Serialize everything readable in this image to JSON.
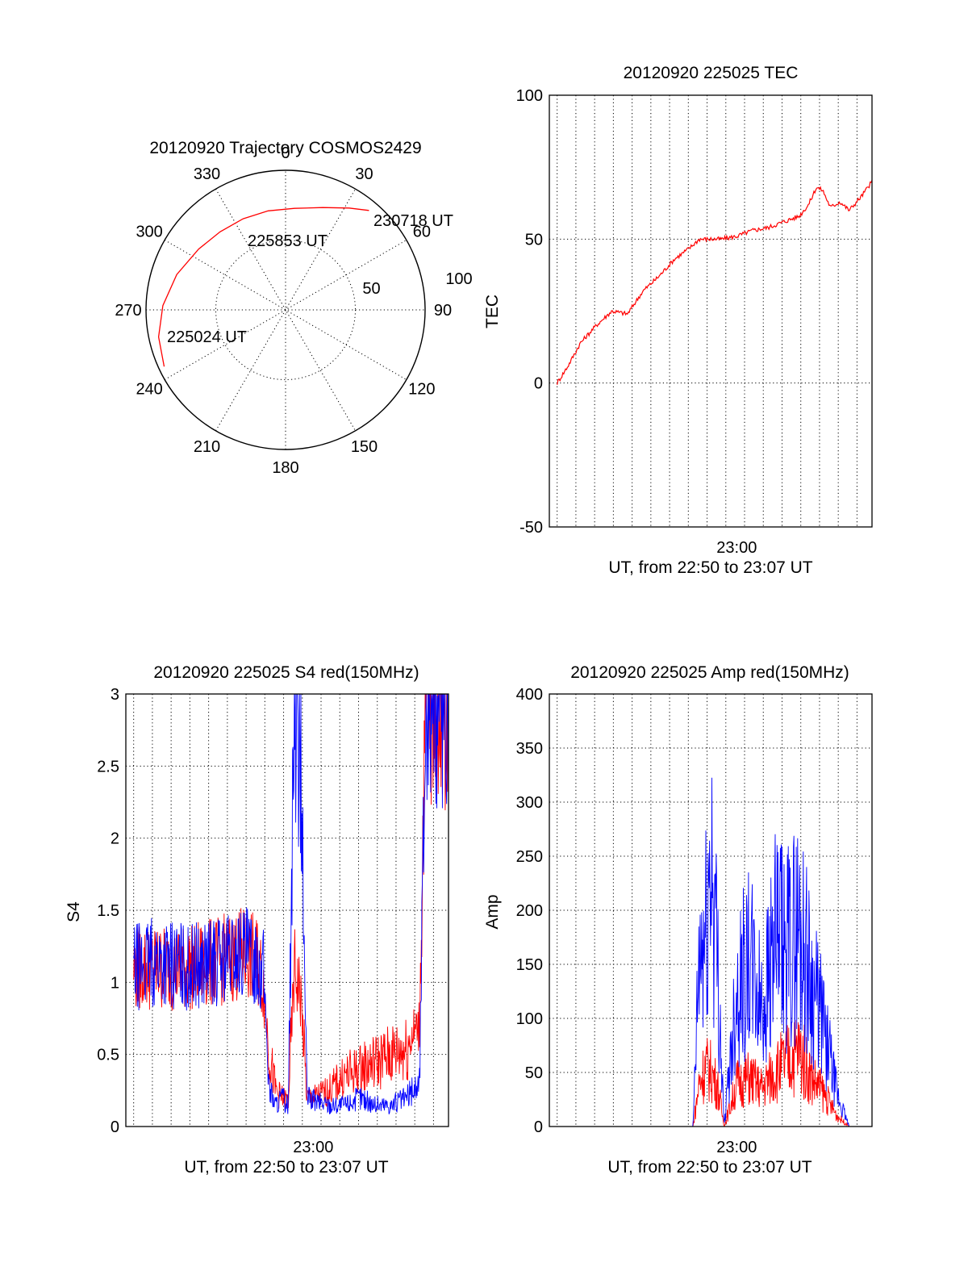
{
  "chart_data": [
    {
      "type": "polar",
      "title": "20120920 Trajectory COSMOS2429",
      "azimuth_labels": [
        "0",
        "30",
        "60",
        "90",
        "120",
        "150",
        "180",
        "210",
        "240",
        "270",
        "300",
        "330"
      ],
      "radial_ticks": [
        "50",
        "100"
      ],
      "radial_max": 100,
      "series": [
        {
          "color": "#ff0000",
          "points": [
            {
              "az": 245,
              "r": 96
            },
            {
              "az": 258,
              "r": 93
            },
            {
              "az": 272,
              "r": 88
            },
            {
              "az": 288,
              "r": 82
            },
            {
              "az": 305,
              "r": 76
            },
            {
              "az": 320,
              "r": 73
            },
            {
              "az": 335,
              "r": 72
            },
            {
              "az": 350,
              "r": 72
            },
            {
              "az": 5,
              "r": 73
            },
            {
              "az": 20,
              "r": 78
            },
            {
              "az": 32,
              "r": 86
            },
            {
              "az": 40,
              "r": 93
            }
          ]
        }
      ],
      "annotations": [
        "225024 UT",
        "225853 UT",
        "230718 UT"
      ]
    },
    {
      "type": "line",
      "title": "20120920 225025 TEC",
      "xlabel": "UT, from 22:50 to 23:07 UT",
      "ylabel": "TEC",
      "xlim": [
        0,
        1033
      ],
      "ylim": [
        -50,
        100
      ],
      "yticks": [
        "-50",
        "0",
        "50",
        "100"
      ],
      "xtick_labels": [
        {
          "t": 600,
          "label": "23:00"
        }
      ],
      "grid": true,
      "series": [
        {
          "color": "#ff0000",
          "x": [
            25,
            60,
            100,
            150,
            200,
            250,
            300,
            350,
            400,
            450,
            480,
            500,
            550,
            600,
            650,
            700,
            750,
            800,
            830,
            855,
            875,
            900,
            930,
            960,
            1000,
            1033
          ],
          "y": [
            0,
            6,
            14,
            20,
            25,
            24,
            32,
            37,
            43,
            47,
            50,
            50,
            50,
            51,
            53,
            54,
            56,
            58,
            62,
            68,
            67,
            61,
            63,
            60,
            65,
            70
          ]
        }
      ]
    },
    {
      "type": "line",
      "title": "20120920 225025 S4 red(150MHz)",
      "xlabel": "UT, from 22:50 to 23:07 UT",
      "ylabel": "S4",
      "xlim": [
        0,
        1033
      ],
      "ylim": [
        0,
        3
      ],
      "yticks": [
        "0",
        "0.5",
        "1",
        "1.5",
        "2",
        "2.5",
        "3"
      ],
      "xtick_labels": [
        {
          "t": 600,
          "label": "23:00"
        }
      ],
      "grid": true,
      "series": [
        {
          "color": "#ff0000",
          "x": [
            25,
            100,
            200,
            300,
            380,
            420,
            440,
            460,
            480,
            500,
            520,
            540,
            560,
            580,
            600,
            650,
            700,
            750,
            800,
            850,
            900,
            920,
            940,
            960,
            990,
            1033
          ],
          "y": [
            1.1,
            1.1,
            1.1,
            1.15,
            1.2,
            1.15,
            1.0,
            0.5,
            0.25,
            0.2,
            0.18,
            1.1,
            0.9,
            0.2,
            0.2,
            0.25,
            0.35,
            0.4,
            0.45,
            0.5,
            0.55,
            0.65,
            0.7,
            3.0,
            3.0,
            3.0
          ]
        },
        {
          "color": "#0000ff",
          "x": [
            25,
            100,
            200,
            300,
            380,
            420,
            440,
            460,
            480,
            500,
            520,
            540,
            560,
            580,
            600,
            650,
            700,
            750,
            800,
            850,
            900,
            920,
            940,
            960,
            990,
            1033
          ],
          "y": [
            1.1,
            1.15,
            1.1,
            1.15,
            1.2,
            1.15,
            1.1,
            0.25,
            0.15,
            0.2,
            0.15,
            3.0,
            2.5,
            0.2,
            0.18,
            0.15,
            0.15,
            0.2,
            0.15,
            0.15,
            0.2,
            0.25,
            0.3,
            3.0,
            3.0,
            3.0
          ]
        }
      ]
    },
    {
      "type": "line",
      "title": "20120920 225025 Amp red(150MHz)",
      "xlabel": "UT, from 22:50 to 23:07 UT",
      "ylabel": "Amp",
      "xlim": [
        0,
        1033
      ],
      "ylim": [
        0,
        400
      ],
      "yticks": [
        "0",
        "50",
        "100",
        "150",
        "200",
        "250",
        "300",
        "350",
        "400"
      ],
      "xtick_labels": [
        {
          "t": 600,
          "label": "23:00"
        }
      ],
      "grid": true,
      "series": [
        {
          "color": "#ff0000",
          "x": [
            0,
            460,
            480,
            500,
            520,
            540,
            560,
            600,
            640,
            680,
            720,
            760,
            800,
            840,
            880,
            900,
            920,
            940,
            960,
            1033
          ],
          "y": [
            0,
            0,
            40,
            55,
            50,
            35,
            0,
            40,
            45,
            35,
            50,
            60,
            70,
            45,
            30,
            20,
            10,
            5,
            0,
            0
          ]
        },
        {
          "color": "#0000ff",
          "x": [
            0,
            460,
            480,
            500,
            520,
            540,
            560,
            600,
            640,
            680,
            720,
            760,
            800,
            840,
            880,
            900,
            920,
            940,
            960,
            1033
          ],
          "y": [
            0,
            0,
            150,
            170,
            250,
            140,
            0,
            130,
            150,
            110,
            170,
            160,
            185,
            130,
            90,
            60,
            30,
            15,
            0,
            0
          ]
        }
      ]
    }
  ]
}
